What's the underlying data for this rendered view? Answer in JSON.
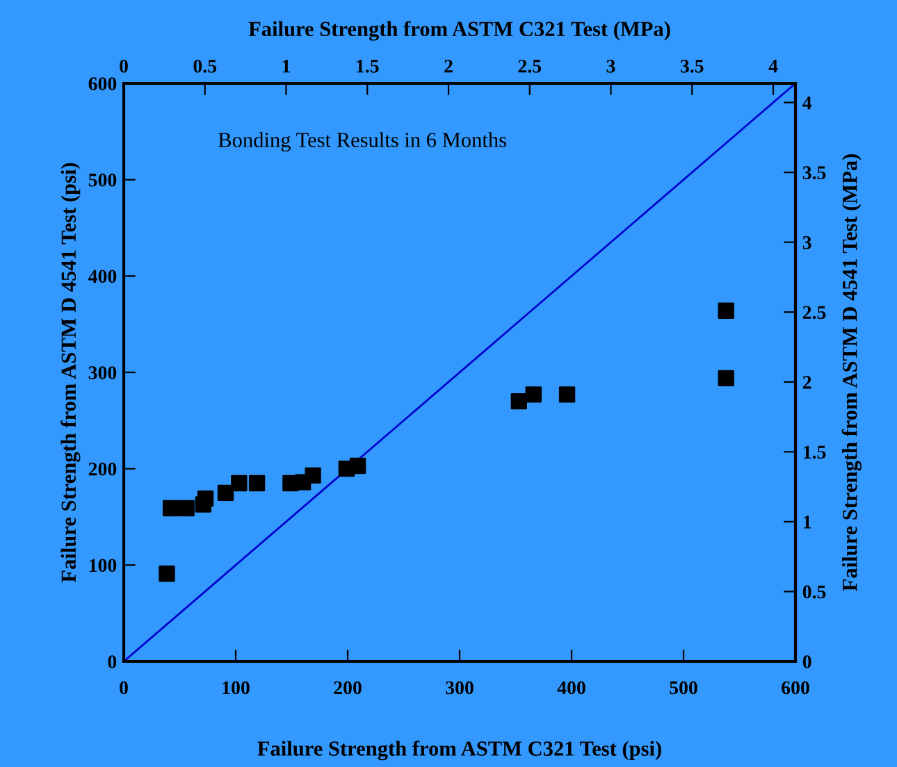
{
  "chart_data": {
    "type": "scatter",
    "xlabel": "Failure Strength from ASTM C321 Test (psi)",
    "ylabel": "Failure Strength from ASTM D 4541 Test (psi)",
    "x2label": "Failure Strength from ASTM C321 Test (MPa)",
    "y2label": "Failure Strength from ASTM D 4541 Test (MPa)",
    "annotations": [
      "Bonding Test Results in 6 Months"
    ],
    "series": [
      {
        "color": "#000000",
        "marker": "square",
        "x": [
          38.5,
          42,
          56,
          71,
          73,
          91,
          103,
          119,
          149,
          160,
          169,
          199,
          209,
          353,
          366,
          396,
          538,
          538
        ],
        "values": [
          91,
          159,
          159,
          163,
          169,
          175,
          185,
          185,
          185,
          186,
          193,
          200,
          203,
          270,
          277,
          277,
          294,
          364
        ]
      },
      {
        "type": "line",
        "color": "#0000cc",
        "marker": "none",
        "line_style": "solid",
        "x": [
          0,
          600
        ],
        "values": [
          0,
          600
        ]
      }
    ],
    "xlim": [
      0,
      600
    ],
    "xticks": [
      0,
      100,
      200,
      300,
      400,
      500,
      600
    ],
    "ylim": [
      0,
      600
    ],
    "yticks": [
      0,
      100,
      200,
      300,
      400,
      500,
      600
    ],
    "x2lim": [
      0,
      4.137
    ],
    "x2ticks": [
      0,
      0.5,
      1,
      1.5,
      2,
      2.5,
      3,
      3.5,
      4
    ],
    "y2lim": [
      0,
      4.137
    ],
    "y2ticks": [
      0,
      0.5,
      1,
      1.5,
      2,
      2.5,
      3,
      3.5,
      4
    ],
    "grid": false,
    "legend": false
  }
}
